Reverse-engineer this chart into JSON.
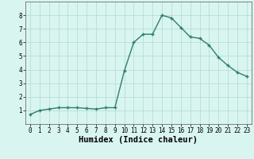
{
  "x": [
    0,
    1,
    2,
    3,
    4,
    5,
    6,
    7,
    8,
    9,
    10,
    11,
    12,
    13,
    14,
    15,
    16,
    17,
    18,
    19,
    20,
    21,
    22,
    23
  ],
  "y": [
    0.7,
    1.0,
    1.1,
    1.2,
    1.2,
    1.2,
    1.15,
    1.1,
    1.2,
    1.2,
    3.9,
    6.0,
    6.6,
    6.6,
    8.0,
    7.8,
    7.1,
    6.4,
    6.3,
    5.8,
    4.9,
    4.3,
    3.8,
    3.5
  ],
  "line_color": "#2d7d6e",
  "marker": "+",
  "bg_color": "#d9f5f0",
  "grid_color": "#b8ddd8",
  "xlabel": "Humidex (Indice chaleur)",
  "ylim": [
    0,
    9
  ],
  "xlim": [
    -0.5,
    23.5
  ],
  "yticks": [
    1,
    2,
    3,
    4,
    5,
    6,
    7,
    8
  ],
  "xticks": [
    0,
    1,
    2,
    3,
    4,
    5,
    6,
    7,
    8,
    9,
    10,
    11,
    12,
    13,
    14,
    15,
    16,
    17,
    18,
    19,
    20,
    21,
    22,
    23
  ],
  "tick_fontsize": 5.5,
  "xlabel_fontsize": 7.5,
  "linewidth": 1.0,
  "markersize": 3.5,
  "markeredgewidth": 1.0
}
